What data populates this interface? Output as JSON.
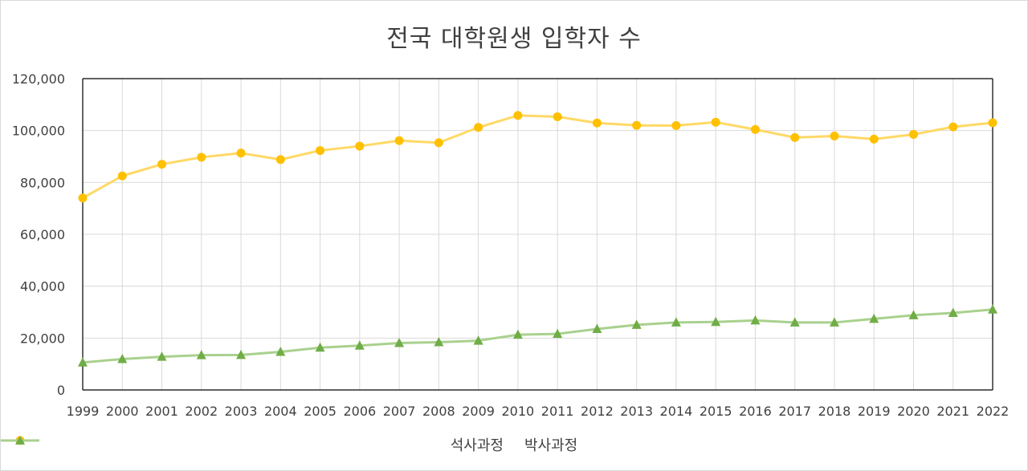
{
  "chart_data": {
    "type": "line",
    "title": "전국 대학원생 입학자 수",
    "xlabel": "",
    "ylabel": "",
    "categories": [
      "1999",
      "2000",
      "2001",
      "2002",
      "2003",
      "2004",
      "2005",
      "2006",
      "2007",
      "2008",
      "2009",
      "2010",
      "2011",
      "2012",
      "2013",
      "2014",
      "2015",
      "2016",
      "2017",
      "2018",
      "2019",
      "2020",
      "2021",
      "2022"
    ],
    "ylim": [
      0,
      120000
    ],
    "yticks": [
      "0",
      "20,000",
      "40,000",
      "60,000",
      "80,000",
      "100,000",
      "120,000"
    ],
    "grid": true,
    "legend_position": "bottom",
    "series": [
      {
        "name": "석사과정",
        "color": "#ffd966",
        "marker_color": "#ffc000",
        "marker": "circle",
        "values": [
          74000,
          82500,
          87000,
          89700,
          91300,
          88800,
          92300,
          94000,
          96100,
          95300,
          101200,
          105800,
          105300,
          102900,
          102000,
          101900,
          103200,
          100400,
          97300,
          97900,
          96700,
          98500,
          101400,
          103000
        ]
      },
      {
        "name": "박사과정",
        "color": "#a9d18e",
        "marker_color": "#70ad47",
        "marker": "triangle",
        "values": [
          10600,
          11900,
          12800,
          13400,
          13500,
          14700,
          16300,
          17100,
          18100,
          18400,
          19000,
          21300,
          21600,
          23500,
          25100,
          26000,
          26200,
          26800,
          26000,
          26000,
          27400,
          28800,
          29700,
          31000
        ]
      }
    ]
  }
}
